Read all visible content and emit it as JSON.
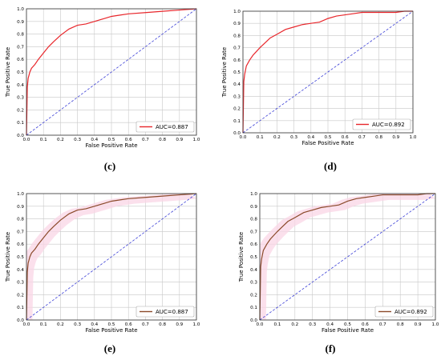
{
  "chart_data": [
    {
      "type": "line",
      "caption": "(c)",
      "xlabel": "False Positive Rate",
      "ylabel": "True Positive Rate",
      "xlim": [
        0,
        1
      ],
      "ylim": [
        0,
        1
      ],
      "xticks": [
        "0.0",
        "0.1",
        "0.2",
        "0.3",
        "0.4",
        "0.5",
        "0.6",
        "0.7",
        "0.8",
        "0.9",
        "1.0"
      ],
      "yticks": [
        "0.0",
        "0.1",
        "0.2",
        "0.3",
        "0.4",
        "0.5",
        "0.6",
        "0.7",
        "0.8",
        "0.9",
        "1.0"
      ],
      "grid": true,
      "legend": "lower-right",
      "series": [
        {
          "name": "AUC=0.887",
          "color": "#e8262b",
          "fill": "",
          "x": [
            0,
            0.005,
            0.01,
            0.02,
            0.03,
            0.05,
            0.07,
            0.1,
            0.13,
            0.16,
            0.2,
            0.25,
            0.3,
            0.35,
            0.4,
            0.45,
            0.5,
            0.55,
            0.6,
            0.7,
            0.8,
            0.9,
            1.0
          ],
          "y": [
            0,
            0.38,
            0.45,
            0.5,
            0.53,
            0.56,
            0.6,
            0.65,
            0.7,
            0.74,
            0.79,
            0.84,
            0.87,
            0.88,
            0.9,
            0.92,
            0.94,
            0.95,
            0.96,
            0.97,
            0.98,
            0.99,
            1.0
          ]
        }
      ],
      "diagonal_color": "#3b3fd6"
    },
    {
      "type": "line",
      "caption": "(d)",
      "xlabel": "False Positive Rate",
      "ylabel": "True Positive Rate",
      "xlim": [
        0,
        1
      ],
      "ylim": [
        0,
        1
      ],
      "xticks": [
        "0.0",
        "0.1",
        "0.2",
        "0.3",
        "0.4",
        "0.5",
        "0.6",
        "0.7",
        "0.8",
        "0.9",
        "1.0"
      ],
      "yticks": [
        "0.0",
        "0.1",
        "0.2",
        "0.3",
        "0.4",
        "0.5",
        "0.6",
        "0.7",
        "0.8",
        "0.9",
        "1.0"
      ],
      "grid": true,
      "legend": "lower-right",
      "series": [
        {
          "name": "AUC=0.892",
          "color": "#e8262b",
          "fill": "",
          "x": [
            0,
            0.005,
            0.01,
            0.02,
            0.04,
            0.06,
            0.08,
            0.1,
            0.13,
            0.16,
            0.2,
            0.25,
            0.3,
            0.35,
            0.4,
            0.45,
            0.5,
            0.55,
            0.6,
            0.65,
            0.7,
            0.8,
            0.9,
            0.95,
            1.0
          ],
          "y": [
            0,
            0.42,
            0.48,
            0.55,
            0.6,
            0.64,
            0.67,
            0.7,
            0.74,
            0.78,
            0.81,
            0.85,
            0.87,
            0.89,
            0.9,
            0.91,
            0.94,
            0.96,
            0.97,
            0.98,
            0.99,
            0.99,
            0.99,
            1.0,
            1.0
          ]
        }
      ],
      "diagonal_color": "#3b3fd6"
    },
    {
      "type": "line",
      "caption": "(e)",
      "xlabel": "False Positive Rate",
      "ylabel": "True Positive Rate",
      "xlim": [
        0,
        1
      ],
      "ylim": [
        0,
        1
      ],
      "xticks": [
        "0.0",
        "0.1",
        "0.2",
        "0.3",
        "0.4",
        "0.5",
        "0.6",
        "0.7",
        "0.8",
        "0.9",
        "1.0"
      ],
      "yticks": [
        "0.0",
        "0.1",
        "0.2",
        "0.3",
        "0.4",
        "0.5",
        "0.6",
        "0.7",
        "0.8",
        "0.9",
        "1.0"
      ],
      "grid": true,
      "legend": "lower-right",
      "series": [
        {
          "name": "AUC=0.887",
          "color": "#8b4a2a",
          "fill": "#f9d6e6",
          "x": [
            0,
            0.005,
            0.01,
            0.02,
            0.03,
            0.05,
            0.07,
            0.1,
            0.13,
            0.16,
            0.2,
            0.25,
            0.3,
            0.35,
            0.4,
            0.45,
            0.5,
            0.55,
            0.6,
            0.7,
            0.8,
            0.9,
            1.0
          ],
          "y": [
            0,
            0.38,
            0.45,
            0.5,
            0.53,
            0.56,
            0.6,
            0.65,
            0.7,
            0.74,
            0.79,
            0.84,
            0.87,
            0.88,
            0.9,
            0.92,
            0.94,
            0.95,
            0.96,
            0.97,
            0.98,
            0.99,
            1.0
          ]
        }
      ],
      "diagonal_color": "#3b3fd6"
    },
    {
      "type": "line",
      "caption": "(f)",
      "xlabel": "False Positive Rate",
      "ylabel": "True Positive Rate",
      "xlim": [
        0,
        1
      ],
      "ylim": [
        0,
        1
      ],
      "xticks": [
        "0.0",
        "0.1",
        "0.2",
        "0.3",
        "0.4",
        "0.5",
        "0.6",
        "0.7",
        "0.8",
        "0.9",
        "1.0"
      ],
      "yticks": [
        "0.0",
        "0.1",
        "0.2",
        "0.3",
        "0.4",
        "0.5",
        "0.6",
        "0.7",
        "0.8",
        "0.9",
        "1.0"
      ],
      "grid": true,
      "legend": "lower-right",
      "series": [
        {
          "name": "AUC=0.892",
          "color": "#8b4a2a",
          "fill": "#f9d6e6",
          "x": [
            0,
            0.005,
            0.01,
            0.02,
            0.04,
            0.06,
            0.08,
            0.1,
            0.13,
            0.16,
            0.2,
            0.25,
            0.3,
            0.35,
            0.4,
            0.45,
            0.5,
            0.55,
            0.6,
            0.65,
            0.7,
            0.8,
            0.9,
            0.95,
            1.0
          ],
          "y": [
            0,
            0.42,
            0.48,
            0.55,
            0.6,
            0.64,
            0.67,
            0.7,
            0.74,
            0.78,
            0.81,
            0.85,
            0.87,
            0.89,
            0.9,
            0.91,
            0.94,
            0.96,
            0.97,
            0.98,
            0.99,
            0.99,
            0.99,
            1.0,
            1.0
          ]
        }
      ],
      "diagonal_color": "#3b3fd6"
    }
  ]
}
